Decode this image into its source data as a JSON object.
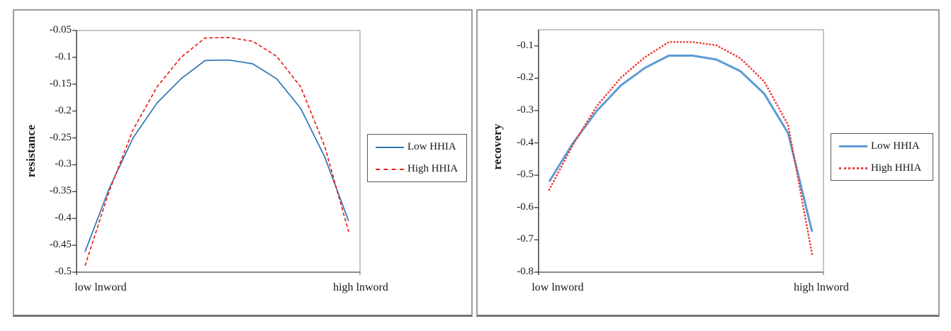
{
  "chart_data": [
    {
      "type": "line",
      "title": "",
      "ylabel": "resistance",
      "xlabel": "",
      "x_categories": [
        "low lnword",
        "high lnword"
      ],
      "ylim": [
        -0.5,
        -0.05
      ],
      "yticks": [
        "-0.05",
        "-0.1",
        "-0.15",
        "-0.2",
        "-0.25",
        "-0.3",
        "-0.35",
        "-0.4",
        "-0.45",
        "-0.5"
      ],
      "x": [
        0,
        0.091,
        0.182,
        0.273,
        0.364,
        0.455,
        0.545,
        0.636,
        0.727,
        0.818,
        0.909,
        1
      ],
      "series": [
        {
          "name": "Low HHIA",
          "color": "#2E75B6",
          "style": "solid",
          "width": 1.7,
          "values": [
            -0.462,
            -0.345,
            -0.25,
            -0.185,
            -0.14,
            -0.106,
            -0.105,
            -0.112,
            -0.14,
            -0.195,
            -0.285,
            -0.405
          ]
        },
        {
          "name": "High HHIA",
          "color": "#E8231E",
          "style": "dashed",
          "width": 1.7,
          "values": [
            -0.488,
            -0.35,
            -0.235,
            -0.155,
            -0.1,
            -0.064,
            -0.063,
            -0.07,
            -0.098,
            -0.155,
            -0.265,
            -0.425
          ]
        }
      ],
      "legend_position": "right",
      "grid": false
    },
    {
      "type": "line",
      "title": "",
      "ylabel": "recovery",
      "xlabel": "",
      "x_categories": [
        "low lnword",
        "high lnword"
      ],
      "ylim": [
        -0.8,
        -0.05
      ],
      "yticks": [
        "-0.1",
        "-0.2",
        "-0.3",
        "-0.4",
        "-0.5",
        "-0.6",
        "-0.7",
        "-0.8"
      ],
      "x": [
        0,
        0.091,
        0.182,
        0.273,
        0.364,
        0.455,
        0.545,
        0.636,
        0.727,
        0.818,
        0.909,
        1
      ],
      "series": [
        {
          "name": "Low HHIA",
          "color": "#5B9BD5",
          "style": "solid",
          "width": 3,
          "values": [
            -0.52,
            -0.4,
            -0.3,
            -0.222,
            -0.168,
            -0.13,
            -0.13,
            -0.142,
            -0.178,
            -0.248,
            -0.37,
            -0.675
          ]
        },
        {
          "name": "High HHIA",
          "color": "#EE3A34",
          "style": "dotted",
          "width": 2.7,
          "values": [
            -0.545,
            -0.405,
            -0.285,
            -0.198,
            -0.135,
            -0.088,
            -0.088,
            -0.098,
            -0.138,
            -0.21,
            -0.345,
            -0.745
          ]
        }
      ],
      "legend_position": "right",
      "grid": false
    }
  ]
}
